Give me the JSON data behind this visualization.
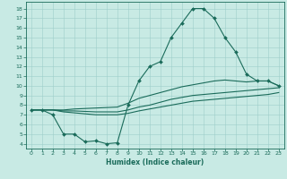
{
  "xlabel": "Humidex (Indice chaleur)",
  "bg_color": "#c8eae4",
  "line_color": "#1a6b5a",
  "grid_color": "#9ecfca",
  "xlim": [
    -0.5,
    23.5
  ],
  "ylim": [
    3.5,
    18.7
  ],
  "xticks": [
    0,
    1,
    2,
    3,
    4,
    5,
    6,
    7,
    8,
    9,
    10,
    11,
    12,
    13,
    14,
    15,
    16,
    17,
    18,
    19,
    20,
    21,
    22,
    23
  ],
  "yticks": [
    4,
    5,
    6,
    7,
    8,
    9,
    10,
    11,
    12,
    13,
    14,
    15,
    16,
    17,
    18
  ],
  "line1_x": [
    0,
    1,
    2,
    3,
    4,
    5,
    6,
    7,
    8,
    9,
    10,
    11,
    12,
    13,
    14,
    15,
    16,
    17,
    18,
    19,
    20,
    21,
    22,
    23
  ],
  "line1_y": [
    7.5,
    7.5,
    7.0,
    5.0,
    5.0,
    4.2,
    4.3,
    4.0,
    4.1,
    8.0,
    10.5,
    12.0,
    12.5,
    15.0,
    16.5,
    18.0,
    18.0,
    17.0,
    15.0,
    13.5,
    11.2,
    10.5,
    10.5,
    10.0
  ],
  "line2_x": [
    0,
    1,
    2,
    3,
    4,
    5,
    6,
    7,
    8,
    9,
    10,
    11,
    12,
    13,
    14,
    15,
    16,
    17,
    18,
    19,
    20,
    21,
    22,
    23
  ],
  "line2_y": [
    7.5,
    7.5,
    7.5,
    7.5,
    7.6,
    7.65,
    7.7,
    7.75,
    7.8,
    8.2,
    8.7,
    9.0,
    9.3,
    9.6,
    9.9,
    10.1,
    10.3,
    10.5,
    10.6,
    10.5,
    10.4,
    10.5,
    10.5,
    10.0
  ],
  "line3_x": [
    0,
    1,
    2,
    3,
    4,
    5,
    6,
    7,
    8,
    9,
    10,
    11,
    12,
    13,
    14,
    15,
    16,
    17,
    18,
    19,
    20,
    21,
    22,
    23
  ],
  "line3_y": [
    7.5,
    7.5,
    7.5,
    7.4,
    7.4,
    7.35,
    7.3,
    7.3,
    7.3,
    7.5,
    7.8,
    8.0,
    8.3,
    8.6,
    8.8,
    9.0,
    9.1,
    9.2,
    9.3,
    9.4,
    9.5,
    9.6,
    9.7,
    9.8
  ],
  "line4_x": [
    0,
    1,
    2,
    3,
    4,
    5,
    6,
    7,
    8,
    9,
    10,
    11,
    12,
    13,
    14,
    15,
    16,
    17,
    18,
    19,
    20,
    21,
    22,
    23
  ],
  "line4_y": [
    7.5,
    7.5,
    7.5,
    7.3,
    7.2,
    7.1,
    7.0,
    7.0,
    7.0,
    7.15,
    7.4,
    7.6,
    7.8,
    8.0,
    8.2,
    8.4,
    8.5,
    8.6,
    8.7,
    8.8,
    8.9,
    9.0,
    9.1,
    9.3
  ]
}
